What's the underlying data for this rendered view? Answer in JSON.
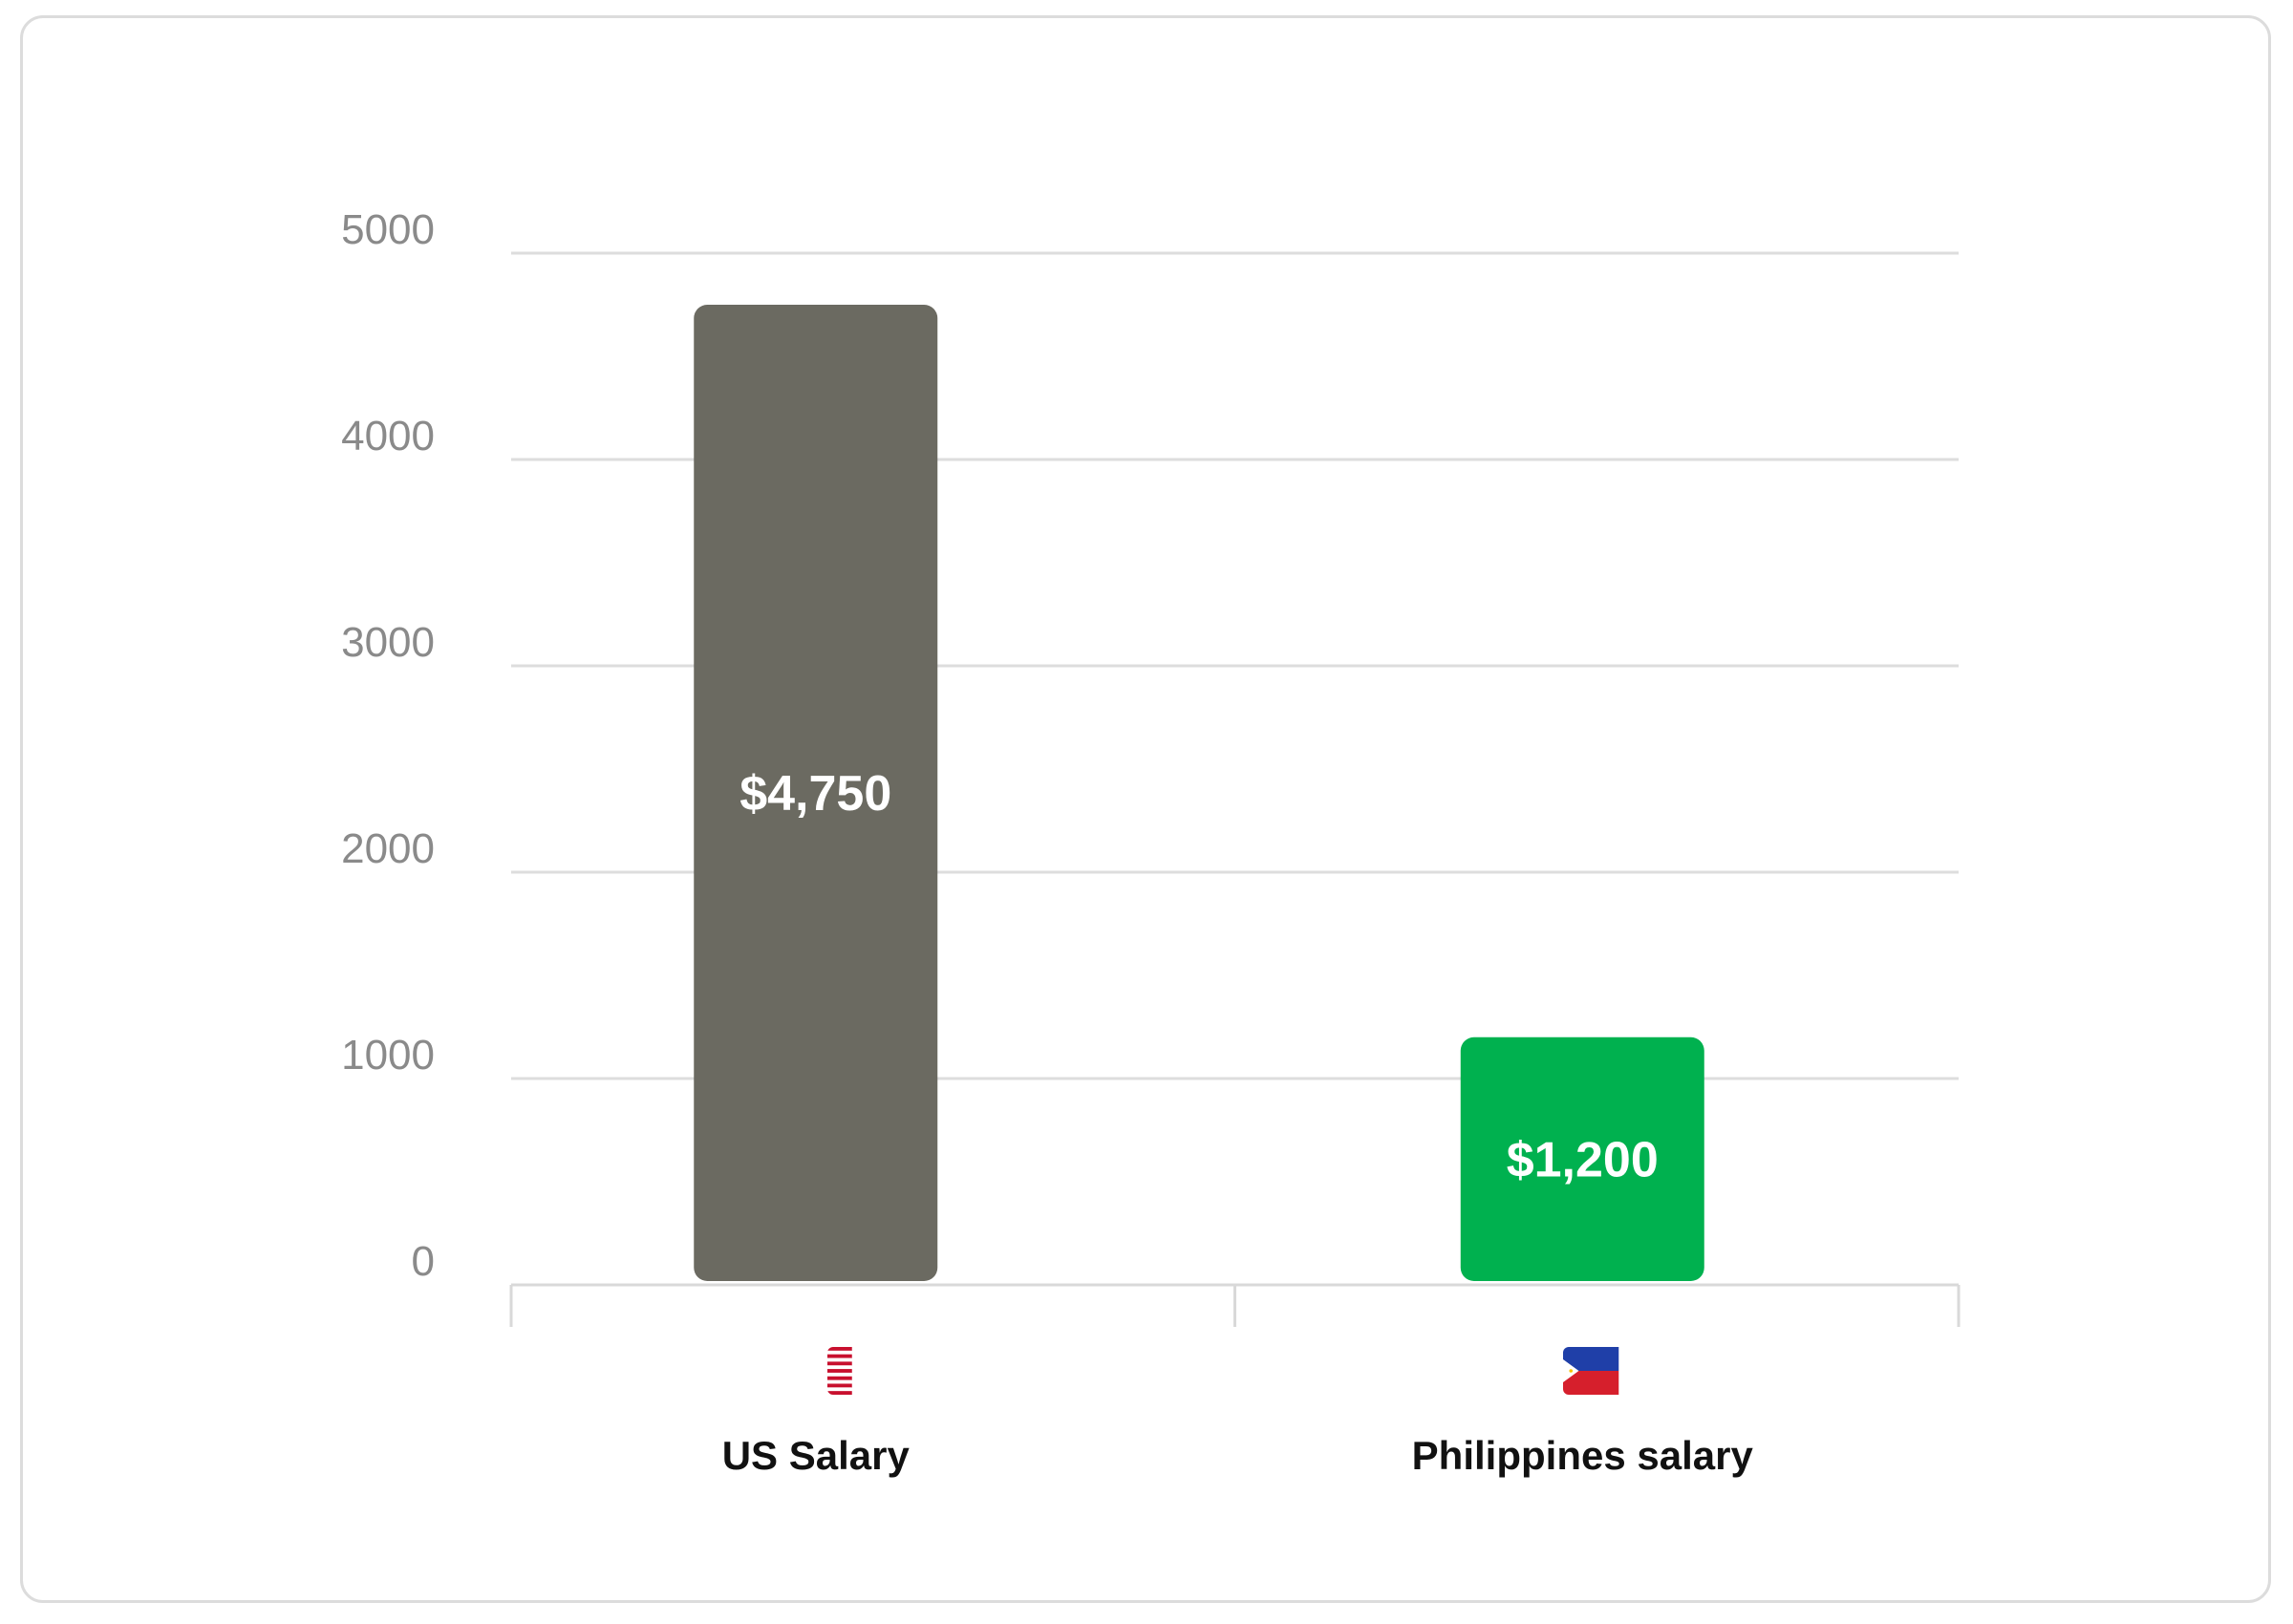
{
  "chart_data": {
    "type": "bar",
    "categories": [
      "US Salary",
      "Philippines salary"
    ],
    "values": [
      4750,
      1200
    ],
    "data_labels": [
      "$4,750",
      "$1,200"
    ],
    "category_icons": [
      "us-flag-icon",
      "philippines-flag-icon"
    ],
    "colors": [
      "#6b6a61",
      "#00b14f"
    ],
    "ylim": [
      0,
      5000
    ],
    "yticks": [
      0,
      1000,
      2000,
      3000,
      4000,
      5000
    ],
    "grid": true,
    "title": "",
    "xlabel": "",
    "ylabel": ""
  }
}
